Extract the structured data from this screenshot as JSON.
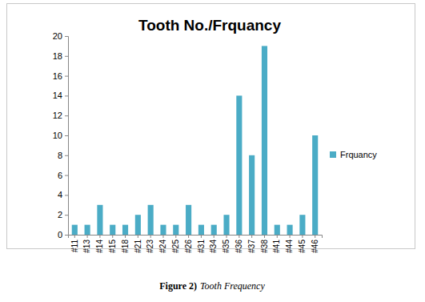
{
  "chart_data": {
    "type": "bar",
    "title": "Tooth No./Frquancy",
    "categories": [
      "#11",
      "#13",
      "#14",
      "#15",
      "#18",
      "#21",
      "#23",
      "#24",
      "#25",
      "#26",
      "#31",
      "#34",
      "#35",
      "#36",
      "#37",
      "#38",
      "#41",
      "#44",
      "#45",
      "#46"
    ],
    "series": [
      {
        "name": "Frquancy",
        "color": "#4bacc6",
        "values": [
          1,
          1,
          3,
          1,
          1,
          2,
          3,
          1,
          1,
          3,
          1,
          1,
          2,
          14,
          8,
          19,
          1,
          1,
          2,
          10
        ]
      }
    ],
    "ylim": [
      0,
      20
    ],
    "yticks": [
      0,
      2,
      4,
      6,
      8,
      10,
      12,
      14,
      16,
      18,
      20
    ],
    "grid": false,
    "legend": "right",
    "caption_label": "Figure 2)",
    "caption_text": "Tooth Frequency"
  }
}
